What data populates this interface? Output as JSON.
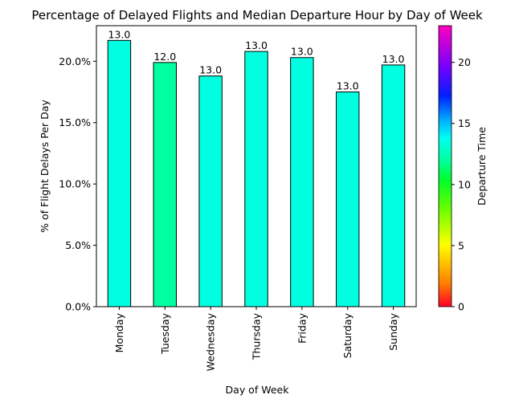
{
  "chart_data": {
    "type": "bar",
    "title": "Percentage of Delayed Flights and Median Departure Hour by Day of Week",
    "xlabel": "Day of Week",
    "ylabel": "% of Flight Delays Per Day",
    "categories": [
      "Monday",
      "Tuesday",
      "Wednesday",
      "Thursday",
      "Friday",
      "Saturday",
      "Sunday"
    ],
    "values": [
      21.7,
      19.9,
      18.8,
      20.8,
      20.3,
      17.5,
      19.7
    ],
    "median_departure_hour": [
      13.0,
      12.0,
      13.0,
      13.0,
      13.0,
      13.0,
      13.0
    ],
    "data_labels": [
      "13.0",
      "12.0",
      "13.0",
      "13.0",
      "13.0",
      "13.0",
      "13.0"
    ],
    "ylim": [
      0,
      22.9
    ],
    "yticks": [
      0,
      5,
      10,
      15,
      20
    ],
    "ytick_labels": [
      "0.0%",
      "5.0%",
      "10.0%",
      "15.0%",
      "20.0%"
    ],
    "colorbar": {
      "label": "Departure Time",
      "colormap": "gist_rainbow",
      "range": [
        0,
        23
      ],
      "ticks": [
        0,
        5,
        10,
        15,
        20
      ],
      "tick_labels": [
        "0",
        "5",
        "10",
        "15",
        "20"
      ]
    },
    "bar_edge_color": "#000000",
    "grid": false,
    "legend": "none"
  }
}
